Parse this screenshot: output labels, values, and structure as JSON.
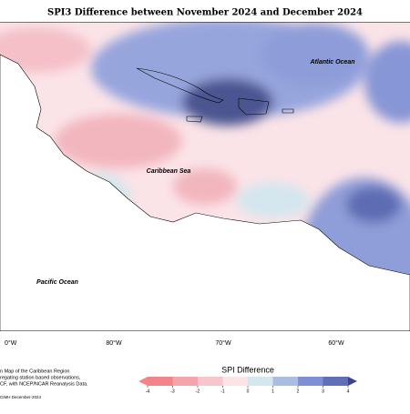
{
  "title": "SPI3 Difference between November 2024 and December 2024",
  "map": {
    "labels": [
      "Atlantic Ocean",
      "Caribbean Sea",
      "Pacific Ocean"
    ],
    "longitudes": [
      "0°W",
      "80°W",
      "70°W",
      "60°W"
    ]
  },
  "footnote": {
    "lines": [
      "n Map of the Caribbean Region",
      "regating station based observations,",
      "CF, with NCEP/NCAR Reanalysis Data."
    ],
    "credit": "CIMH December-2024"
  },
  "legend": {
    "title": "SPI Difference",
    "ticks": [
      -4,
      -3,
      -2,
      -1,
      0,
      1,
      2,
      3,
      4
    ],
    "colors": [
      "#f2848a",
      "#f4a4ab",
      "#f7c6cb",
      "#fbe3e6",
      "#d4e6ee",
      "#a9bde0",
      "#7f8fd4",
      "#6070b8",
      "#3c4588",
      "#3c4588"
    ]
  }
}
